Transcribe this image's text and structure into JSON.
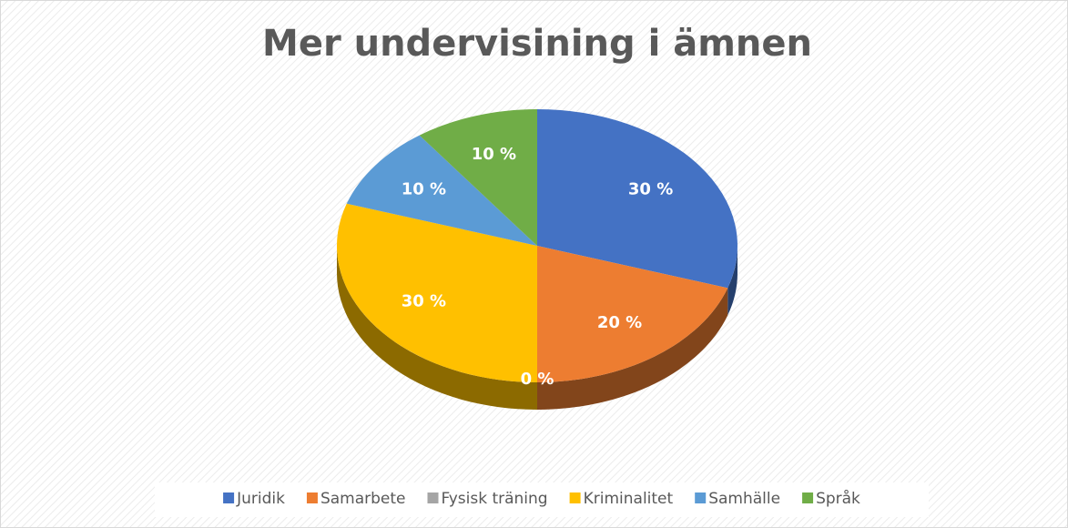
{
  "chart_data": {
    "type": "pie",
    "title": "Mer undervisining i ämnen",
    "categories": [
      "Juridik",
      "Samarbete",
      "Fysisk träning",
      "Kriminalitet",
      "Samhälle",
      "Språk"
    ],
    "values": [
      30,
      20,
      0,
      30,
      10,
      10
    ],
    "value_labels": [
      "30 %",
      "20 %",
      "0 %",
      "30 %",
      "10 %",
      "10 %"
    ],
    "colors": [
      "#4472c4",
      "#ed7d31",
      "#a5a5a5",
      "#ffc000",
      "#5b9bd5",
      "#70ad47"
    ],
    "legend": "bottom"
  }
}
